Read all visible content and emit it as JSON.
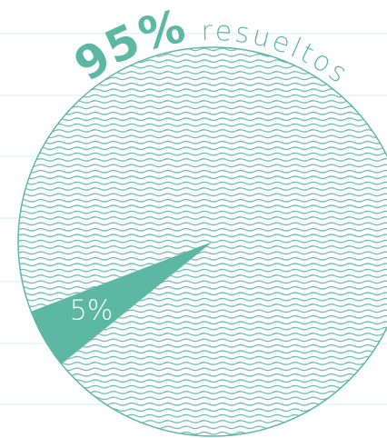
{
  "chart_data": {
    "type": "pie",
    "categories": [
      "resueltos",
      null
    ],
    "values": [
      95,
      5
    ],
    "value_labels": [
      "95%",
      "5%"
    ],
    "colors": [
      "#5cb8a2",
      "#5cb8a2"
    ],
    "hatched": [
      true,
      false
    ]
  }
}
